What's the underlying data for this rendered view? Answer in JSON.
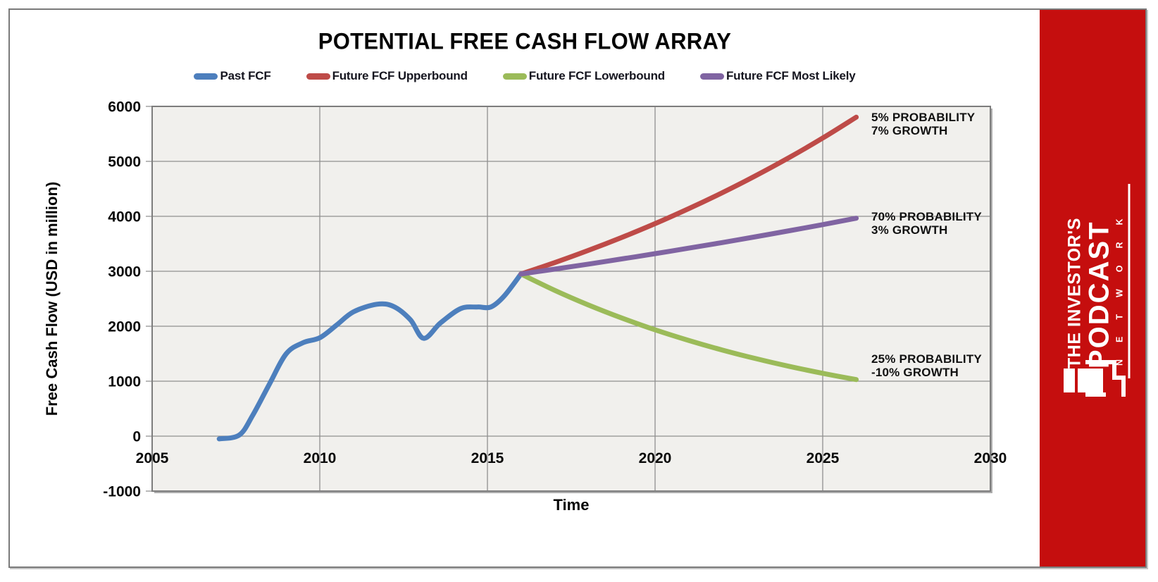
{
  "branding": {
    "line1": "THE INVESTOR'S",
    "line2": "PODCAST",
    "network": "NETWORK",
    "background_color": "#c50e0e"
  },
  "chart_data": {
    "type": "line",
    "title": "POTENTIAL FREE CASH FLOW ARRAY",
    "xlabel": "Time",
    "ylabel": "Free Cash Flow (USD in million)",
    "xlim": [
      2005,
      2030
    ],
    "ylim": [
      -1000,
      6000
    ],
    "x_ticks": [
      2005,
      2010,
      2015,
      2020,
      2025,
      2030
    ],
    "y_ticks": [
      -1000,
      0,
      1000,
      2000,
      3000,
      4000,
      5000,
      6000
    ],
    "grid": true,
    "legend_position": "top",
    "plot_background": "#f1f0ed",
    "gridline_color": "#8f8f8f",
    "series": [
      {
        "name": "Past FCF",
        "color": "#4d7fbd",
        "x": [
          2007,
          2007.6,
          2008,
          2008.5,
          2009,
          2009.5,
          2010,
          2010.5,
          2011,
          2011.7,
          2012.2,
          2012.7,
          2013.1,
          2013.6,
          2014.2,
          2014.7,
          2015.1,
          2015.5,
          2016
        ],
        "values": [
          -50,
          20,
          380,
          950,
          1500,
          1700,
          1790,
          2020,
          2260,
          2400,
          2360,
          2120,
          1780,
          2060,
          2320,
          2350,
          2350,
          2550,
          2950
        ]
      },
      {
        "name": "Future FCF Upperbound",
        "color": "#be4b48",
        "x": [
          2016,
          2017,
          2018,
          2019,
          2020,
          2021,
          2022,
          2023,
          2024,
          2025,
          2026
        ],
        "values": [
          2950,
          3157,
          3378,
          3614,
          3867,
          4138,
          4428,
          4738,
          5069,
          5424,
          5804
        ]
      },
      {
        "name": "Future FCF Lowerbound",
        "color": "#9bbb59",
        "x": [
          2016,
          2017,
          2018,
          2019,
          2020,
          2021,
          2022,
          2023,
          2024,
          2025,
          2026
        ],
        "values": [
          2950,
          2655,
          2390,
          2151,
          1935,
          1742,
          1568,
          1411,
          1270,
          1143,
          1029
        ]
      },
      {
        "name": "Future FCF Most Likely",
        "color": "#8064a2",
        "x": [
          2016,
          2017,
          2018,
          2019,
          2020,
          2021,
          2022,
          2023,
          2024,
          2025,
          2026
        ],
        "values": [
          2950,
          3039,
          3130,
          3224,
          3320,
          3420,
          3522,
          3628,
          3737,
          3849,
          3965
        ]
      }
    ],
    "annotations": [
      {
        "lines": [
          "5% PROBABILITY",
          "7% GROWTH"
        ]
      },
      {
        "lines": [
          "70% PROBABILITY",
          "3% GROWTH"
        ]
      },
      {
        "lines": [
          "25% PROBABILITY",
          "-10% GROWTH"
        ]
      }
    ]
  }
}
